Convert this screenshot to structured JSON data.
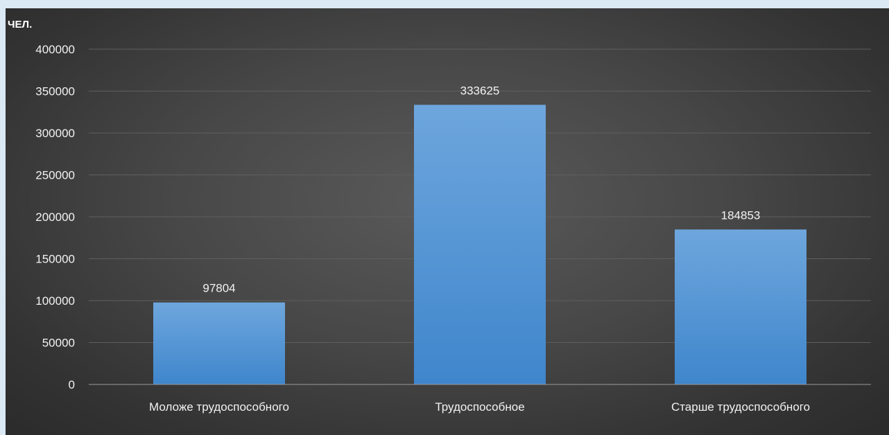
{
  "chart_data": {
    "type": "bar",
    "ylabel": "ЧЕЛ.",
    "categories": [
      "Моложе трудоспособного",
      "Трудоспособное",
      "Старше трудоспособного"
    ],
    "values": [
      97804,
      333625,
      184853
    ],
    "data_labels": [
      "97804",
      "333625",
      "184853"
    ],
    "ylim": [
      0,
      400000
    ],
    "yticks": [
      0,
      50000,
      100000,
      150000,
      200000,
      250000,
      300000,
      350000,
      400000
    ],
    "ytick_labels": [
      "0",
      "50000",
      "100000",
      "150000",
      "200000",
      "250000",
      "300000",
      "350000",
      "400000"
    ],
    "grid": true,
    "legend": "none"
  },
  "colors": {
    "bar_top": "#6ea6dd",
    "bar_bottom": "#3f86cc",
    "gridline": "#5f5f5f",
    "axis_line": "#9a9a9a"
  }
}
